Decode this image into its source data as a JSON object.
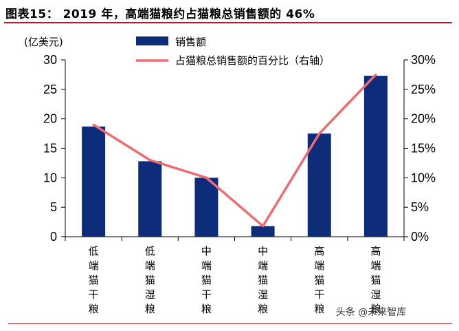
{
  "figure_title": "图表15：  2019 年，高端猫粮约占猫粮总销售额的 46%",
  "watermark": "头条 @未来智库",
  "colors": {
    "bar": "#0d2d7a",
    "line": "#f26b6e",
    "title_rule": "#b01c2e",
    "axis": "#000000"
  },
  "chart_data": {
    "type": "bar",
    "y_unit_label": "(亿美元)",
    "categories": [
      "低端猫干粮",
      "低端猫湿粮",
      "中端猫干粮",
      "中端猫湿粮",
      "高端猫干粮",
      "高端猫湿粮"
    ],
    "category_labels": [
      [
        "低",
        "端",
        "猫",
        "干",
        "粮"
      ],
      [
        "低",
        "端",
        "猫",
        "湿",
        "粮"
      ],
      [
        "中",
        "端",
        "猫",
        "干",
        "粮"
      ],
      [
        "中",
        "端",
        "猫",
        "湿",
        "粮"
      ],
      [
        "高",
        "端",
        "猫",
        "干",
        "粮"
      ],
      [
        "高",
        "端",
        "猫",
        "湿",
        "粮"
      ]
    ],
    "series": [
      {
        "name": "销售额",
        "type": "bar",
        "axis": "left",
        "values": [
          18.7,
          12.8,
          10.0,
          1.8,
          17.5,
          27.3
        ]
      },
      {
        "name": "占猫粮总销售额的百分比（右轴）",
        "type": "line",
        "axis": "right",
        "values": [
          19.0,
          13.0,
          10.0,
          1.8,
          17.5,
          27.5
        ]
      }
    ],
    "ylim_left": [
      0,
      30
    ],
    "yticks_left": [
      "0",
      "5",
      "10",
      "15",
      "20",
      "25",
      "30"
    ],
    "ylim_right": [
      0,
      30
    ],
    "yticks_right": [
      "0%",
      "5%",
      "10%",
      "15%",
      "20%",
      "25%",
      "30%"
    ],
    "grid": false,
    "legend_position": "top-center"
  }
}
